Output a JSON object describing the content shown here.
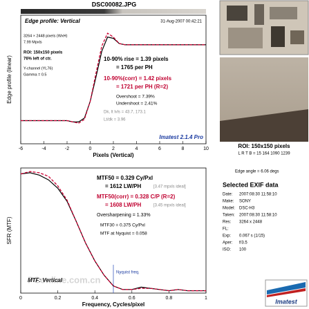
{
  "header": {
    "title": "DSC00082.JPG"
  },
  "chart_data": [
    {
      "type": "line",
      "ylabel": "Edge profile (linear)",
      "xlabel": "Pixels (Vertical)",
      "x": [
        -6,
        -5.5,
        -5,
        -4.5,
        -4,
        -3.5,
        -3,
        -2.5,
        -2,
        -1.5,
        -1,
        -0.5,
        0,
        0.5,
        1,
        1.5,
        2,
        2.5,
        3,
        3.5,
        4,
        4.5,
        5,
        5.5,
        6,
        6.5,
        7,
        7.5,
        8,
        8.5,
        9,
        9.5,
        10
      ],
      "series": [
        {
          "color": "#000000",
          "values": [
            0.18,
            0.18,
            0.18,
            0.18,
            0.18,
            0.18,
            0.18,
            0.18,
            0.18,
            0.17,
            0.17,
            0.2,
            0.33,
            0.52,
            0.72,
            0.83,
            0.82,
            0.78,
            0.77,
            0.77,
            0.77,
            0.77,
            0.77,
            0.77,
            0.77,
            0.77,
            0.77,
            0.77,
            0.77,
            0.77,
            0.77,
            0.77,
            0.77
          ]
        },
        {
          "color": "#cc0033",
          "dashed": true,
          "values": [
            0.18,
            0.18,
            0.18,
            0.18,
            0.18,
            0.18,
            0.18,
            0.18,
            0.18,
            0.17,
            0.16,
            0.19,
            0.33,
            0.55,
            0.76,
            0.86,
            0.83,
            0.78,
            0.77,
            0.77,
            0.77,
            0.77,
            0.77,
            0.77,
            0.77,
            0.77,
            0.77,
            0.77,
            0.77,
            0.77,
            0.77,
            0.77,
            0.77
          ]
        }
      ],
      "xlim": [
        -6,
        10
      ],
      "xticks": [
        -6,
        -4,
        -2,
        0,
        2,
        4,
        6,
        8,
        10
      ],
      "ylim": [
        0,
        1
      ],
      "annotations": [
        "Edge profile: Vertical",
        "31-Aug-2007 00:42:21",
        "3264 × 2448 pixels (WxH)",
        "7.99 Mpxls",
        "ROI: 150x150 pixels",
        "76% left of ctr.",
        "Y-channel (YL76)",
        "Gamma = 0.5",
        "10-90% rise = 1.39 pixels",
        "= 1765 per PH",
        "10-90%(corr) = 1.42 pixels",
        "= 1721 per PH  (R=2)",
        "Overshoot = 7.39%",
        "Undershoot = 2.41%",
        "Dk, lt lvls = 43.7, 173.1",
        "Lt/dk = 3.96",
        "Imatest 2.1.4 Pro"
      ]
    },
    {
      "type": "line",
      "ylabel": "SFR (MTF)",
      "xlabel": "Frequency, Cycles/pixel",
      "x": [
        0,
        0.05,
        0.1,
        0.15,
        0.2,
        0.25,
        0.3,
        0.35,
        0.4,
        0.45,
        0.5,
        0.55,
        0.6,
        0.65,
        0.7,
        0.75,
        0.8,
        0.85,
        0.9,
        0.95,
        1
      ],
      "series": [
        {
          "color": "#000000",
          "values": [
            1.0,
            1.01,
            0.99,
            0.95,
            0.88,
            0.77,
            0.6,
            0.42,
            0.27,
            0.15,
            0.06,
            0.03,
            0.03,
            0.05,
            0.04,
            0.03,
            0.02,
            0.03,
            0.02,
            0.02,
            0.02
          ]
        },
        {
          "color": "#cc0033",
          "dashed": true,
          "values": [
            1.0,
            1.02,
            1.01,
            0.98,
            0.9,
            0.78,
            0.6,
            0.42,
            0.27,
            0.15,
            0.06,
            0.03,
            0.03,
            0.04,
            0.04,
            0.03,
            0.02,
            0.03,
            0.02,
            0.02,
            0.02
          ]
        }
      ],
      "xlim": [
        0,
        1
      ],
      "xticks": [
        0,
        0.2,
        0.4,
        0.6,
        0.8,
        1
      ],
      "ylim": [
        0,
        1.05
      ],
      "nyquist_line": 0.5,
      "annotations": [
        "MTF50 = 0.329 Cy/Pxl",
        "= 1612 LW/PH",
        "[3.47 mpxls ideal]",
        "MTF50(corr) = 0.328 C/P  (R=2)",
        "= 1608 LW/PH",
        "[3.45 mpxls ideal]",
        "Oversharpening = 1.33%",
        "MTF30 = 0.375 Cy/Pxl",
        "MTF at Nyquist = 0.058",
        "MTF: Vertical",
        "Nyquist freq."
      ]
    }
  ],
  "sidebar": {
    "roi": "ROI: 150x150 pixels",
    "lrtb": "L R T B = 15 164 1090 1239",
    "edge_angle": "Edge angle = 6.06 degs",
    "exif_title": "Selected EXIF data",
    "exif": [
      [
        "Date:",
        "2007:08:30 11:58:10"
      ],
      [
        "Make:",
        "SONY"
      ],
      [
        "Model:",
        "DSC-H3"
      ],
      [
        "Taken:",
        "2007:08:30 11:58:10"
      ],
      [
        "Res:",
        "3264 x 2448"
      ],
      [
        "FL:",
        ""
      ],
      [
        "Exp:",
        "0.067 s (1/15)"
      ],
      [
        "Aper:",
        "f/3.5"
      ],
      [
        "ISO:",
        "100"
      ]
    ],
    "logo": "Imatest"
  },
  "watermark": "PConline.com.cn"
}
